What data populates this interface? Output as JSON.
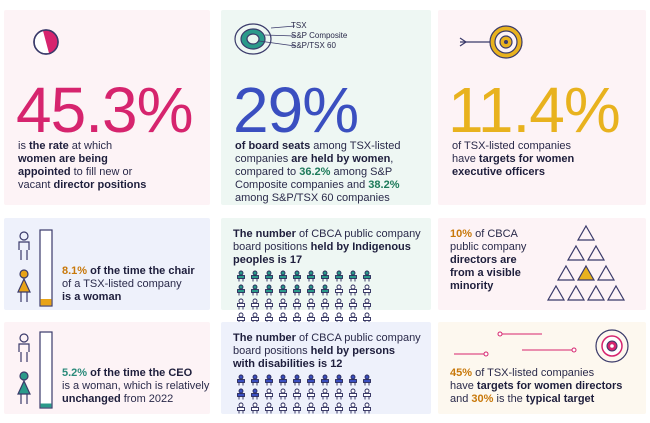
{
  "card1": {
    "big": "45.3%",
    "line1_pre": "is ",
    "line1_b": "the rate",
    "line1_post": " at which",
    "line2_b": "women are being",
    "line3_b": "appointed",
    "line3_post": " to fill new or",
    "line4_pre": "vacant ",
    "line4_b": "director positions"
  },
  "card2": {
    "legend": [
      "TSX",
      "S&P Composite",
      "S&P/TSX 60"
    ],
    "big": "29%",
    "l1_b": "of board seats",
    "l1_post": " among TSX-listed",
    "l2_pre": "companies ",
    "l2_b": "are held by women",
    "l3_pre": "compared to ",
    "l3_h": "36.2%",
    "l3_post": " among S&P",
    "l4_pre": "Composite companies and ",
    "l4_h": "38.2%",
    "l5": "among S&P/TSX 60 companies"
  },
  "card3": {
    "big": "11.4%",
    "l1": "of TSX-listed companies",
    "l2_pre": "have ",
    "l2_b": "targets for women",
    "l3_b": "executive officers"
  },
  "card4": {
    "l1_h": "8.1%",
    "l1_b": " of the time the chair",
    "l2": "of a TSX-listed company",
    "l3_b": "is a woman",
    "bar_fill_fraction": 0.081,
    "accent": "#e8a317"
  },
  "card5": {
    "l1_b": "The number",
    "l1_post": " of CBCA public company",
    "l2_pre": "board positions ",
    "l2_b": "held by Indigenous",
    "l3_b": "peoples is 17",
    "highlighted_count": 17,
    "total_icons": 40
  },
  "card6": {
    "l1_h": "10%",
    "l1_post": " of CBCA",
    "l2": "public company",
    "l3_b": "directors are",
    "l4_b": "from a visible",
    "l5_b": "minority"
  },
  "card7": {
    "l1_h": "5.2%",
    "l1_b": " of the time the CEO",
    "l2": "is a woman, which is relatively",
    "l3_b": "unchanged",
    "l3_post": " from 2022",
    "bar_fill_fraction": 0.052,
    "accent": "#2a9a8a"
  },
  "card8": {
    "l1_b": "The number",
    "l1_post": " of CBCA public company",
    "l2_pre": "board positions ",
    "l2_b": "held by persons",
    "l3_b": "with disabilities is 12",
    "highlighted_count": 12,
    "total_icons": 30
  },
  "card9": {
    "l1_h": "45%",
    "l1_post": " of TSX-listed companies",
    "l2_pre": "have ",
    "l2_b": "targets for women directors",
    "l3_pre": "and ",
    "l3_h": "30%",
    "l3_mid": " is the ",
    "l3_b": "typical target"
  },
  "colors": {
    "pink": "#d6246e",
    "blue": "#3a4fc0",
    "yellow": "#e8b21e",
    "green_text": "#1d7a5a",
    "orange_text": "#c8780a",
    "navy": "#2a2a5a"
  }
}
